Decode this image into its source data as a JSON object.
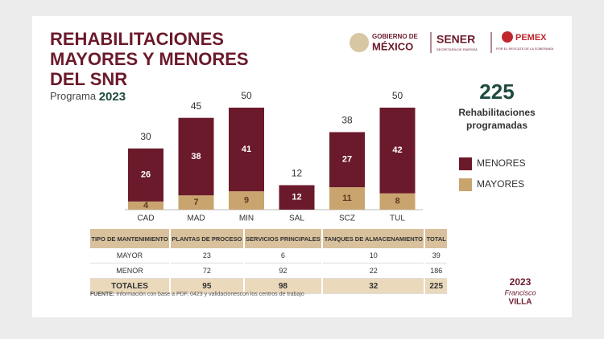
{
  "header": {
    "title_lines": [
      "REHABILITACIONES",
      "MAYORES Y MENORES",
      "DEL SNR"
    ],
    "subtitle": "Programa",
    "year": "2023"
  },
  "logos": {
    "gob_1": "GOBIERNO DE",
    "gob_2": "MÉXICO",
    "sener": "SENER",
    "sener_sub": "SECRETARÍA DE ENERGÍA",
    "pemex": "PEMEX",
    "pemex_sub": "POR EL RESCATE DE LA SOBERANÍA",
    "villa_year": "2023",
    "villa_1": "Francisco",
    "villa_2": "VILLA"
  },
  "summary": {
    "number": "225",
    "label_1": "Rehabilitaciones",
    "label_2": "programadas"
  },
  "chart_data": {
    "type": "stacked-bar",
    "categories": [
      "CAD",
      "MAD",
      "MIN",
      "SAL",
      "SCZ",
      "TUL"
    ],
    "series": [
      {
        "name": "MENORES",
        "color": "#6b1a2b",
        "values": [
          26,
          38,
          41,
          12,
          27,
          42
        ]
      },
      {
        "name": "MAYORES",
        "color": "#c9a46f",
        "values": [
          4,
          7,
          9,
          null,
          11,
          8
        ]
      }
    ],
    "totals": [
      30,
      45,
      50,
      12,
      38,
      50
    ]
  },
  "table": {
    "header": [
      "TIPO DE MANTENIMIENTO",
      "PLANTAS DE PROCESO",
      "SERVICIOS PRINCIPALES",
      "TANQUES DE ALMACENAMIENTO",
      "TOTAL"
    ],
    "rows": [
      [
        "MAYOR",
        "23",
        "6",
        "10",
        "39"
      ],
      [
        "MENOR",
        "72",
        "92",
        "22",
        "186"
      ],
      [
        "TOTALES",
        "95",
        "98",
        "32",
        "225"
      ]
    ]
  },
  "footnote": {
    "label": "FUENTE:",
    "text": "Información con base a PDF, 0423 y validacionescon los centros de trabajo"
  }
}
